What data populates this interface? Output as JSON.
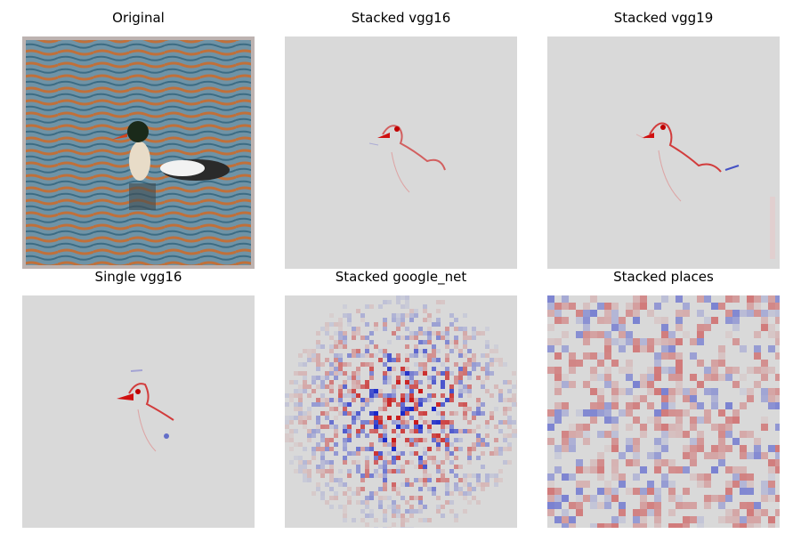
{
  "panels": [
    {
      "title": "Original",
      "type": "photo"
    },
    {
      "title": "Stacked vgg16",
      "type": "saliency"
    },
    {
      "title": "Stacked vgg19",
      "type": "saliency"
    },
    {
      "title": "Single vgg16",
      "type": "saliency"
    },
    {
      "title": "Stacked google_net",
      "type": "saliency-noisy"
    },
    {
      "title": "Stacked places",
      "type": "saliency-coarse"
    }
  ],
  "colors": {
    "background_gray": "#d9d9d9",
    "positive_red": "#c00000",
    "negative_blue": "#1010c0",
    "water_orange": "#c0703a",
    "water_blue": "#6a8ea0"
  }
}
